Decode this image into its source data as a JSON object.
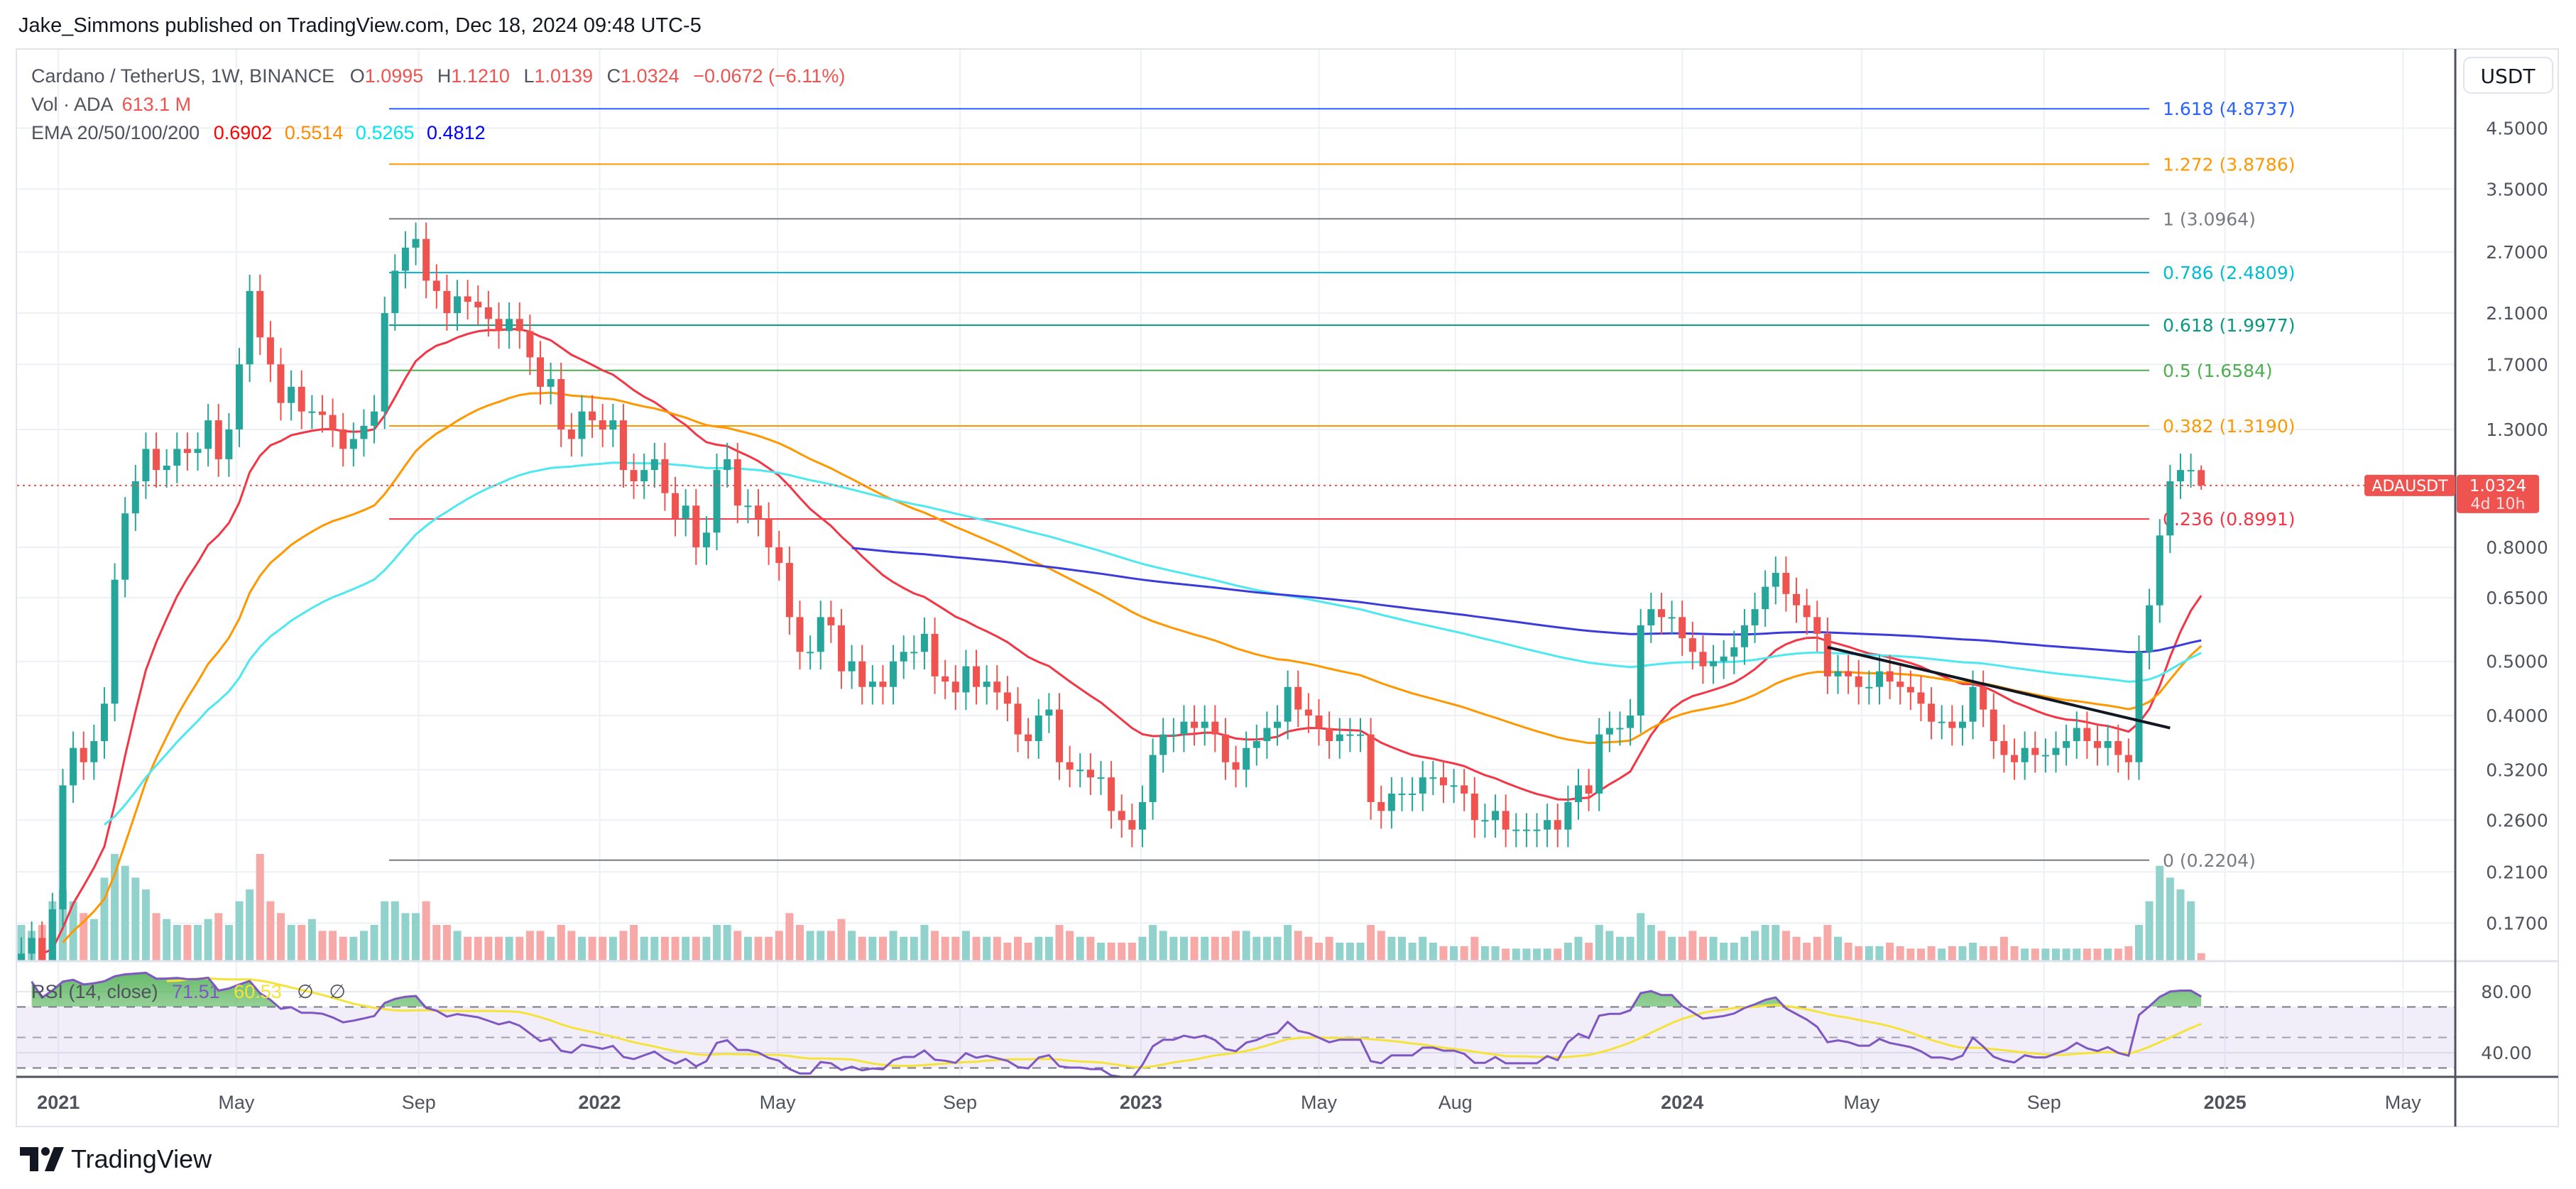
{
  "header": {
    "publisher": "Jake_Simmons published on TradingView.com, Dec 18, 2024 09:48 UTC-5"
  },
  "legend": {
    "symbol": "Cardano / TetherUS, 1W, BINANCE",
    "o_label": "O",
    "o": "1.0995",
    "h_label": "H",
    "h": "1.1210",
    "l_label": "L",
    "l": "1.0139",
    "c_label": "C",
    "c": "1.0324",
    "change": "−0.0672 (−6.11%)",
    "vol_label": "Vol · ADA",
    "vol": "613.1 M",
    "ema_label": "EMA 20/50/100/200",
    "ema20": "0.6902",
    "ema50": "0.5514",
    "ema100": "0.5265",
    "ema200": "0.4812"
  },
  "colors": {
    "up": "#26a69a",
    "down": "#ef5350",
    "vol_up": "#92d2cc",
    "vol_down": "#f7a9a7",
    "ema20": "#f23645",
    "ema50": "#ff9800",
    "ema100": "#4de8f0",
    "ema200": "#3b3bdc",
    "rsi": "#7e57c2",
    "rsi_ma": "#f5e33a",
    "trendline": "#131722"
  },
  "axis": {
    "currency_button": "USDT",
    "price_ticks": [
      "4.5000",
      "3.5000",
      "2.7000",
      "2.1000",
      "1.7000",
      "1.3000",
      "0.8000",
      "0.6500",
      "0.5000",
      "0.4000",
      "0.3200",
      "0.2600",
      "0.2100",
      "0.1700"
    ],
    "rsi_ticks": [
      "80.00",
      "40.00"
    ],
    "time_labels": [
      {
        "label": "2021",
        "date": "2021-01-01",
        "bold": true
      },
      {
        "label": "May",
        "date": "2021-05-01"
      },
      {
        "label": "Sep",
        "date": "2021-09-01"
      },
      {
        "label": "2022",
        "date": "2022-01-01",
        "bold": true
      },
      {
        "label": "May",
        "date": "2022-05-01"
      },
      {
        "label": "Sep",
        "date": "2022-09-01"
      },
      {
        "label": "2023",
        "date": "2023-01-01",
        "bold": true
      },
      {
        "label": "May",
        "date": "2023-05-01"
      },
      {
        "label": "Aug",
        "date": "2023-08-01"
      },
      {
        "label": "2024",
        "date": "2024-01-01",
        "bold": true
      },
      {
        "label": "May",
        "date": "2024-05-01"
      },
      {
        "label": "Sep",
        "date": "2024-09-01"
      },
      {
        "label": "2025",
        "date": "2025-01-01",
        "bold": true
      },
      {
        "label": "May",
        "date": "2025-05-01"
      }
    ],
    "last_price": {
      "symbol": "ADAUSDT",
      "price": "1.0324",
      "countdown": "4d 10h",
      "value": 1.0324
    }
  },
  "rsi": {
    "label": "RSI (14, close)",
    "value": "71.51",
    "ma": "60.53",
    "n1": "∅",
    "n2": "∅"
  },
  "fib": [
    {
      "label": "1.618 (4.8737)",
      "price": 4.8737,
      "color": "#2962ff"
    },
    {
      "label": "1.272 (3.8786)",
      "price": 3.8786,
      "color": "#ff9800"
    },
    {
      "label": "1 (3.0964)",
      "price": 3.0964,
      "color": "#787b86"
    },
    {
      "label": "0.786 (2.4809)",
      "price": 2.4809,
      "color": "#00bcd4"
    },
    {
      "label": "0.618 (1.9977)",
      "price": 1.9977,
      "color": "#089981"
    },
    {
      "label": "0.5 (1.6584)",
      "price": 1.6584,
      "color": "#4caf50"
    },
    {
      "label": "0.382 (1.3190)",
      "price": 1.319,
      "color": "#ff9800"
    },
    {
      "label": "0.236 (0.8991)",
      "price": 0.8991,
      "color": "#f23645"
    },
    {
      "label": "0 (0.2204)",
      "price": 0.2204,
      "color": "#787b86"
    }
  ],
  "trendline": {
    "start": {
      "date": "2024-04-08",
      "price": 0.53
    },
    "end": {
      "date": "2024-11-25",
      "price": 0.38
    }
  },
  "chart_data": {
    "type": "candlestick",
    "interval": "1W",
    "first_week": "2020-12-07",
    "scale": "log",
    "last_candle": {
      "open": 1.0995,
      "high": 1.121,
      "low": 1.0139,
      "close": 1.0324
    },
    "close": [
      0.15,
      0.16,
      0.14,
      0.18,
      0.3,
      0.35,
      0.33,
      0.36,
      0.42,
      0.7,
      0.92,
      1.05,
      1.2,
      1.1,
      1.12,
      1.2,
      1.18,
      1.2,
      1.35,
      1.15,
      1.3,
      1.7,
      2.3,
      1.9,
      1.7,
      1.45,
      1.55,
      1.4,
      1.4,
      1.38,
      1.3,
      1.2,
      1.25,
      1.32,
      1.4,
      2.1,
      2.5,
      2.75,
      2.85,
      2.4,
      2.3,
      2.1,
      2.25,
      2.2,
      2.15,
      2.05,
      1.95,
      2.05,
      1.95,
      1.75,
      1.55,
      1.6,
      1.3,
      1.25,
      1.4,
      1.35,
      1.3,
      1.35,
      1.1,
      1.05,
      1.1,
      1.15,
      1.0,
      0.9,
      0.95,
      0.8,
      0.85,
      1.1,
      1.15,
      0.95,
      0.95,
      0.9,
      0.8,
      0.75,
      0.6,
      0.52,
      0.52,
      0.6,
      0.58,
      0.48,
      0.5,
      0.45,
      0.46,
      0.45,
      0.5,
      0.52,
      0.52,
      0.56,
      0.47,
      0.46,
      0.44,
      0.49,
      0.45,
      0.46,
      0.44,
      0.42,
      0.37,
      0.36,
      0.4,
      0.41,
      0.33,
      0.32,
      0.32,
      0.31,
      0.31,
      0.27,
      0.26,
      0.25,
      0.28,
      0.34,
      0.37,
      0.37,
      0.39,
      0.38,
      0.39,
      0.37,
      0.33,
      0.32,
      0.35,
      0.36,
      0.38,
      0.39,
      0.45,
      0.41,
      0.4,
      0.38,
      0.36,
      0.37,
      0.37,
      0.37,
      0.28,
      0.27,
      0.29,
      0.29,
      0.29,
      0.31,
      0.31,
      0.3,
      0.3,
      0.29,
      0.26,
      0.26,
      0.27,
      0.25,
      0.25,
      0.25,
      0.25,
      0.26,
      0.25,
      0.28,
      0.3,
      0.29,
      0.37,
      0.38,
      0.38,
      0.4,
      0.58,
      0.62,
      0.6,
      0.6,
      0.55,
      0.52,
      0.49,
      0.5,
      0.51,
      0.53,
      0.58,
      0.62,
      0.68,
      0.72,
      0.66,
      0.63,
      0.6,
      0.56,
      0.47,
      0.48,
      0.47,
      0.45,
      0.45,
      0.48,
      0.46,
      0.45,
      0.44,
      0.42,
      0.39,
      0.39,
      0.38,
      0.39,
      0.45,
      0.41,
      0.36,
      0.34,
      0.33,
      0.35,
      0.34,
      0.34,
      0.35,
      0.36,
      0.38,
      0.36,
      0.35,
      0.36,
      0.34,
      0.33,
      0.52,
      0.63,
      0.84,
      1.05,
      1.1,
      1.1,
      1.0324
    ],
    "volume_billions": [
      3,
      2.5,
      3,
      5,
      6,
      5,
      4,
      3.5,
      7,
      9,
      8,
      7,
      6,
      4,
      3.5,
      3,
      3,
      3,
      3.5,
      4,
      3,
      5,
      6,
      9,
      5,
      4,
      3,
      3,
      3.5,
      2.5,
      2.5,
      2,
      2,
      2.5,
      3,
      5,
      5,
      4,
      4,
      5,
      3,
      3,
      2.5,
      2,
      2,
      2,
      2,
      2,
      2,
      2.5,
      2.5,
      2,
      3,
      2.5,
      2,
      2,
      2,
      2,
      2.5,
      3,
      2,
      2,
      2,
      2,
      2,
      2,
      2,
      3,
      3,
      2.5,
      2,
      2,
      2,
      2.5,
      4,
      3,
      2.5,
      2.5,
      2.5,
      3.5,
      2.5,
      2,
      2,
      2,
      2.5,
      2,
      2,
      3,
      2.5,
      2,
      2,
      2.5,
      2,
      2,
      2,
      1.5,
      2,
      1.5,
      2,
      2,
      3,
      2.5,
      2,
      2,
      1.5,
      1.5,
      1.5,
      1.5,
      2,
      3,
      2.5,
      2,
      2,
      2,
      2,
      2,
      2,
      2.5,
      2.5,
      2,
      2,
      2,
      3,
      2.5,
      2,
      1.5,
      2,
      1.5,
      1.5,
      1.5,
      3,
      2.5,
      2,
      2,
      1.5,
      2,
      1.5,
      1.2,
      1.2,
      1.2,
      2,
      1.2,
      1.2,
      1,
      1,
      1,
      1,
      1,
      1,
      1.5,
      2,
      1.5,
      3,
      2.5,
      2,
      2,
      4,
      3,
      2.5,
      2,
      2,
      2.5,
      2,
      2,
      1.5,
      1.5,
      2,
      2.5,
      3,
      3,
      2.5,
      2,
      1.5,
      2,
      3,
      2,
      1.5,
      1.2,
      1.2,
      1.2,
      1.5,
      1.2,
      1,
      1,
      1.2,
      1,
      1.2,
      1.2,
      1.5,
      1.2,
      1.2,
      2,
      1.2,
      1,
      1,
      1,
      1,
      1,
      1,
      1,
      1,
      1,
      1,
      1.2,
      3,
      5,
      8,
      7,
      6,
      5,
      0.613
    ]
  }
}
